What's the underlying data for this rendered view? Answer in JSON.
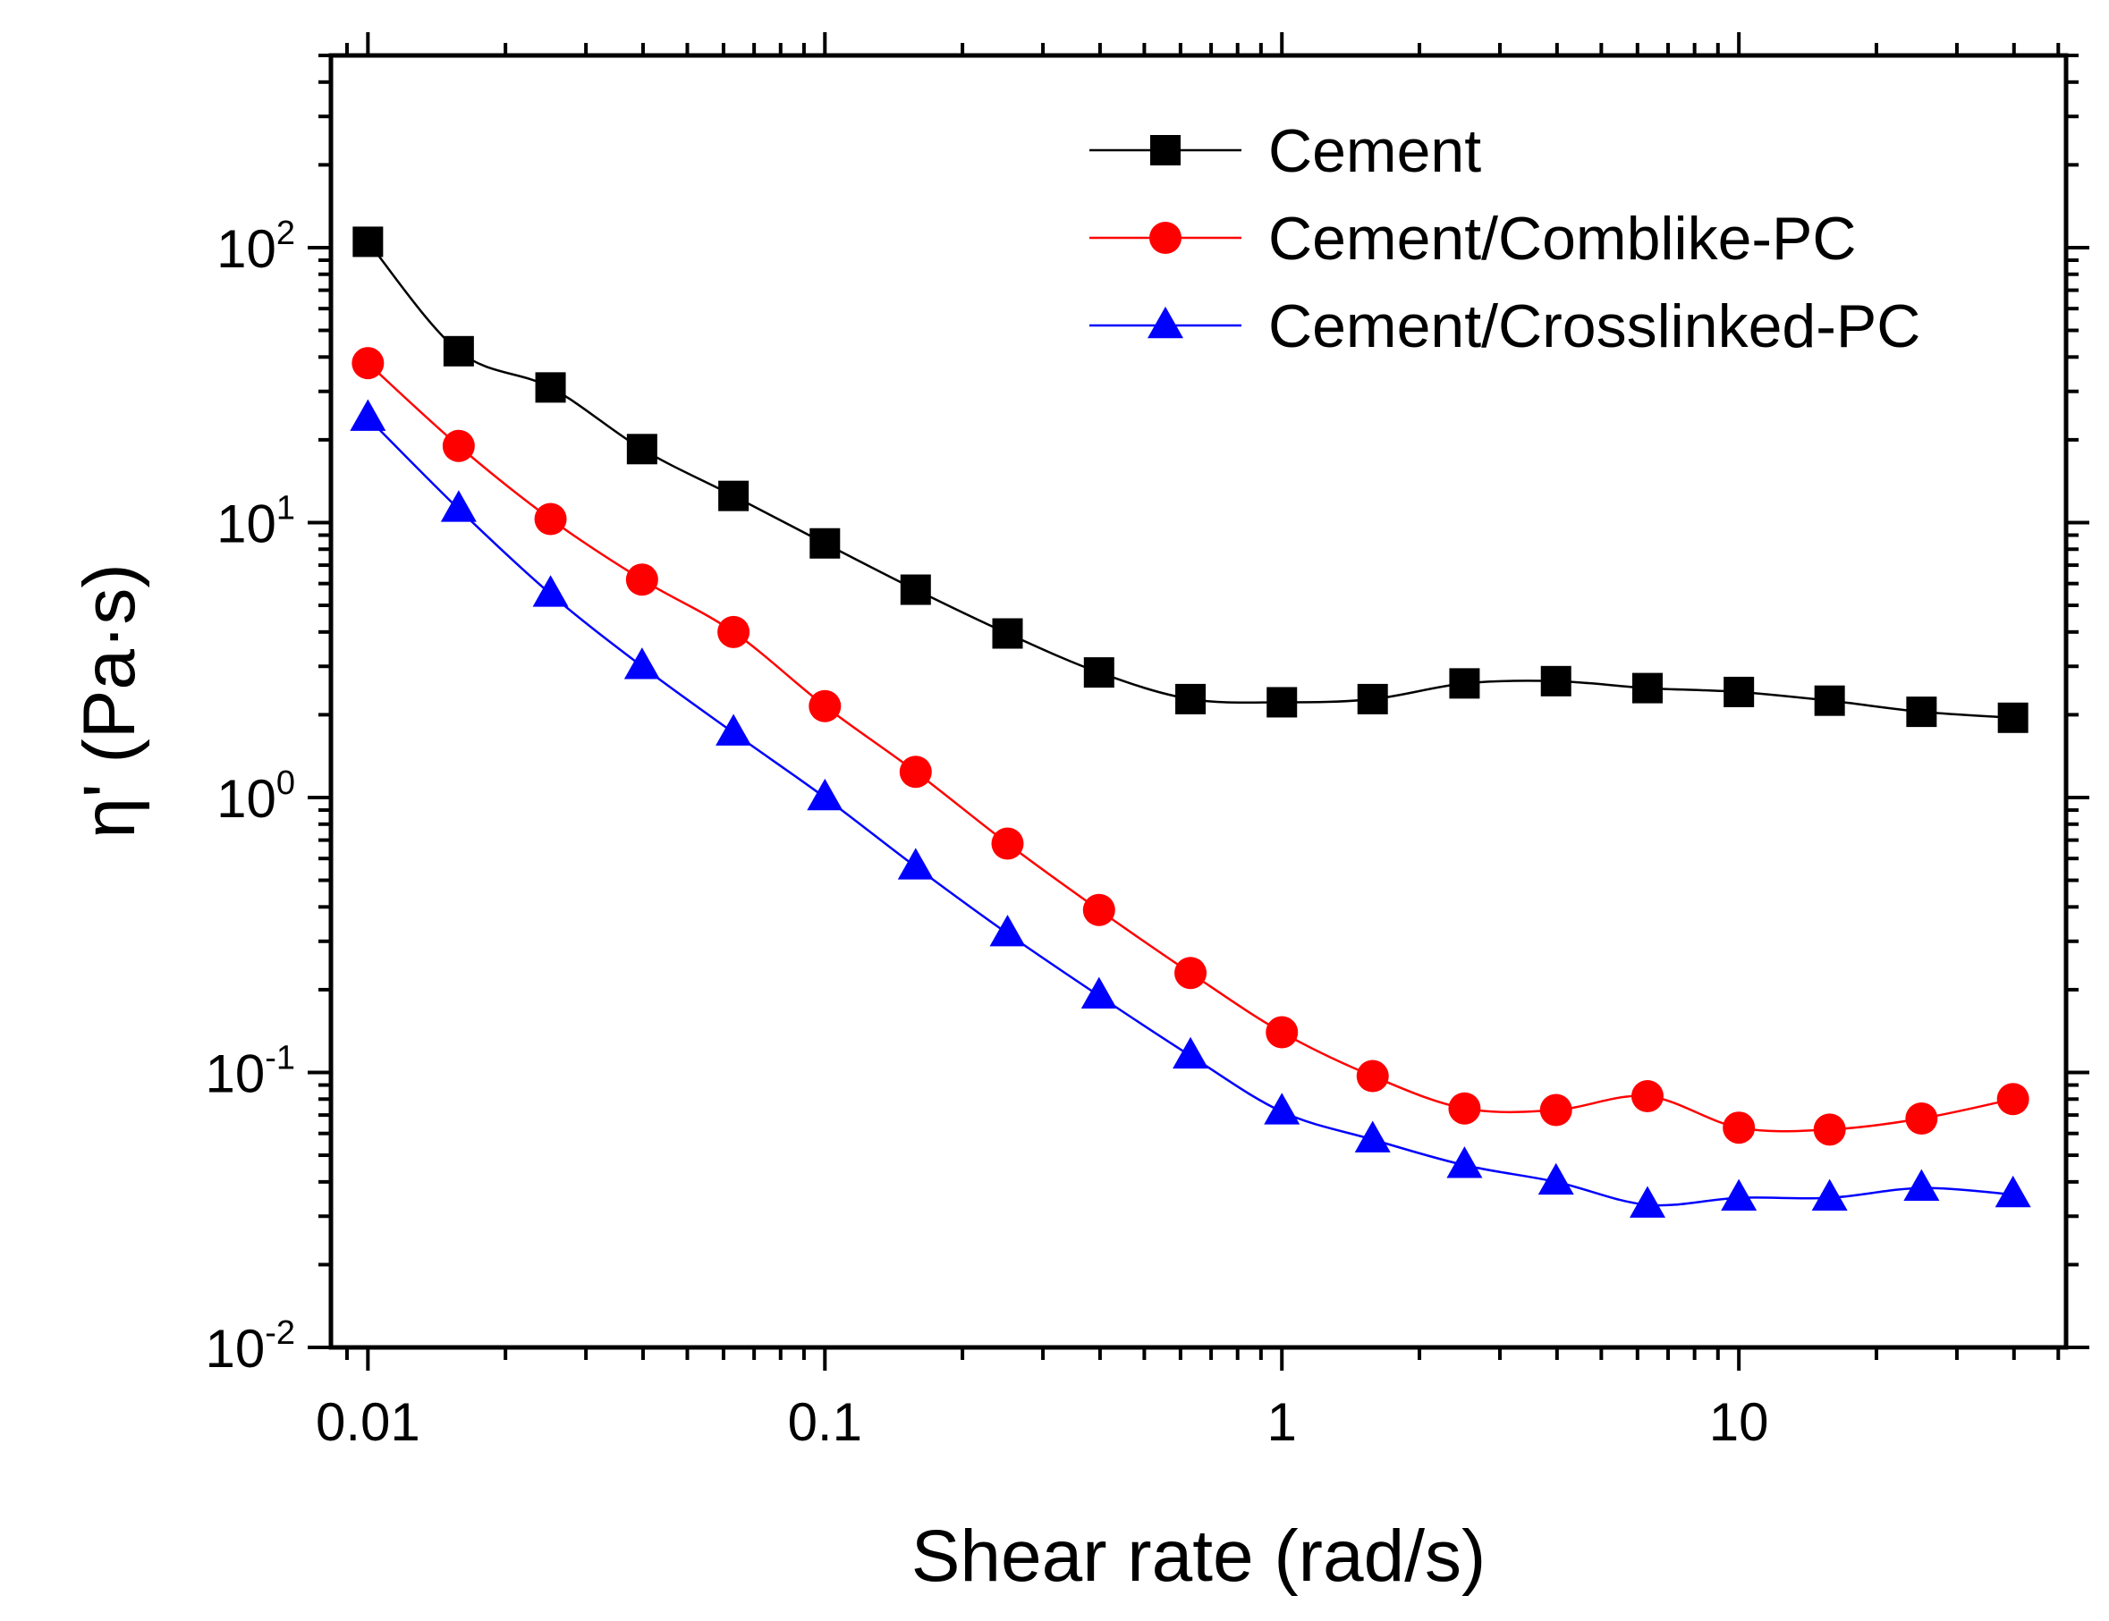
{
  "chart_data": {
    "type": "line",
    "title": "",
    "xlabel": "Shear rate (rad/s)",
    "ylabel": "η' (Pa·s)",
    "xscale": "log",
    "yscale": "log",
    "xlim": [
      0.0083,
      52
    ],
    "ylim": [
      0.01,
      500
    ],
    "legend_position": "top-right",
    "x_ticks": [
      {
        "value": 0.01,
        "label": "0.01"
      },
      {
        "value": 0.1,
        "label": "0.1"
      },
      {
        "value": 1,
        "label": "1"
      },
      {
        "value": 10,
        "label": "10"
      }
    ],
    "y_ticks": [
      {
        "value": 0.01,
        "base": "10",
        "exp": "-2"
      },
      {
        "value": 0.1,
        "base": "10",
        "exp": "-1"
      },
      {
        "value": 1,
        "base": "10",
        "exp": "0"
      },
      {
        "value": 10,
        "base": "10",
        "exp": "1"
      },
      {
        "value": 100,
        "base": "10",
        "exp": "2"
      }
    ],
    "x": [
      0.01,
      0.0158,
      0.0251,
      0.0398,
      0.0631,
      0.1,
      0.158,
      0.251,
      0.398,
      0.631,
      1,
      1.58,
      2.51,
      3.98,
      6.31,
      10,
      15.8,
      25.1,
      39.8
    ],
    "series": [
      {
        "name": "Cement",
        "color": "#000000",
        "marker": "square",
        "values": [
          105,
          42,
          31,
          18.5,
          12.5,
          8.4,
          5.7,
          3.95,
          2.85,
          2.28,
          2.22,
          2.28,
          2.6,
          2.65,
          2.5,
          2.42,
          2.25,
          2.05,
          1.95
        ]
      },
      {
        "name": "Cement/Comblike-PC",
        "color": "#ff0000",
        "marker": "circle",
        "values": [
          38,
          19,
          10.3,
          6.2,
          4.0,
          2.15,
          1.24,
          0.68,
          0.39,
          0.23,
          0.14,
          0.097,
          0.074,
          0.073,
          0.082,
          0.063,
          0.062,
          0.068,
          0.08
        ]
      },
      {
        "name": "Cement/Crosslinked-PC",
        "color": "#0000ff",
        "marker": "triangle",
        "values": [
          24,
          11.2,
          5.5,
          3.0,
          1.72,
          1.0,
          0.56,
          0.32,
          0.19,
          0.115,
          0.072,
          0.057,
          0.046,
          0.04,
          0.033,
          0.035,
          0.035,
          0.038,
          0.036
        ]
      }
    ]
  }
}
